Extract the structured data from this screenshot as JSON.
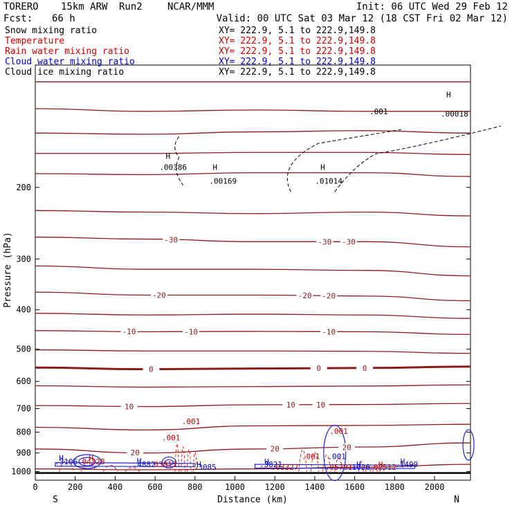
{
  "header": {
    "model": "TORERO",
    "resolution": "15km ARW",
    "run": "Run2",
    "org": "NCAR/MMM",
    "init": "Init: 06 UTC Wed 29 Feb 12",
    "fcst_label": "Fcst:",
    "fcst_value": "66 h",
    "valid": "Valid: 00 UTC Sat 03 Mar 12 (18 CST Fri 02 Mar 12)"
  },
  "legend": [
    {
      "name": "Snow mixing ratio",
      "color": "#000000",
      "xy": "XY= 222.9,  5.1 to 222.9,149.8"
    },
    {
      "name": "Temperature",
      "color": "#cc0000",
      "xy": "XY= 222.9,  5.1 to 222.9,149.8"
    },
    {
      "name": "Rain water mixing ratio",
      "color": "#cc0000",
      "xy": "XY= 222.9,  5.1 to 222.9,149.8"
    },
    {
      "name": "Cloud water mixing ratio",
      "color": "#0000cc",
      "xy": "XY= 222.9,  5.1 to 222.9,149.8"
    },
    {
      "name": "Cloud ice mixing ratio",
      "color": "#000000",
      "xy": "XY= 222.9,  5.1 to 222.9,149.8"
    }
  ],
  "chart_data": {
    "type": "line",
    "title": "",
    "xlabel": "Distance (km)",
    "ylabel": "Pressure (hPa)",
    "xlim": [
      0,
      2180
    ],
    "ylim": [
      1050,
      100
    ],
    "y_scale": "log",
    "x_ticks": [
      0,
      200,
      400,
      600,
      800,
      1000,
      1200,
      1400,
      1600,
      1800,
      2000
    ],
    "y_ticks": [
      200,
      300,
      400,
      500,
      600,
      700,
      800,
      900,
      1000
    ],
    "endpoint_labels": {
      "left": "S",
      "right": "N"
    },
    "temperature_isotherms": [
      {
        "t": -60,
        "p": [
          110,
          110,
          110,
          110,
          110
        ]
      },
      {
        "t": -55,
        "p": [
          128,
          130,
          129,
          130,
          130
        ]
      },
      {
        "t": -50,
        "p": [
          147,
          148,
          146,
          145,
          147
        ]
      },
      {
        "t": -45,
        "p": [
          165,
          165,
          164,
          164,
          166
        ]
      },
      {
        "t": -40,
        "p": [
          185,
          186,
          184,
          184,
          188
        ]
      },
      {
        "t": -35,
        "p": [
          228,
          230,
          232,
          230,
          235
        ]
      },
      {
        "t": -30,
        "p": [
          265,
          268,
          272,
          272,
          280
        ]
      },
      {
        "t": -25,
        "p": [
          312,
          318,
          318,
          320,
          330
        ]
      },
      {
        "t": -20,
        "p": [
          362,
          368,
          368,
          370,
          380
        ]
      },
      {
        "t": -15,
        "p": [
          408,
          412,
          410,
          412,
          420
        ]
      },
      {
        "t": -10,
        "p": [
          450,
          453,
          452,
          453,
          460
        ]
      },
      {
        "t": -5,
        "p": [
          502,
          505,
          505,
          506,
          512
        ]
      },
      {
        "t": 0,
        "p": [
          555,
          560,
          558,
          556,
          552
        ]
      },
      {
        "t": 5,
        "p": [
          615,
          620,
          618,
          616,
          612
        ]
      },
      {
        "t": 10,
        "p": [
          688,
          692,
          685,
          684,
          680
        ]
      },
      {
        "t": 15,
        "p": [
          778,
          790,
          772,
          770,
          765
        ]
      },
      {
        "t": 20,
        "p": [
          880,
          900,
          880,
          870,
          850
        ]
      },
      {
        "t": 25,
        "p": [
          985,
          990,
          985,
          975,
          960
        ]
      }
    ],
    "isotherm_x": [
      0,
      550,
      1100,
      1650,
      2180
    ],
    "isotherm_labels": [
      {
        "text": "-30",
        "x": 680,
        "t": -30
      },
      {
        "text": "-30",
        "x": 1450,
        "t": -30
      },
      {
        "text": "-30",
        "x": 1570,
        "t": -30
      },
      {
        "text": "-20",
        "x": 620,
        "t": -20
      },
      {
        "text": "-20",
        "x": 1350,
        "t": -20
      },
      {
        "text": "-20",
        "x": 1470,
        "t": -20
      },
      {
        "text": "-10",
        "x": 470,
        "t": -10
      },
      {
        "text": "-10",
        "x": 780,
        "t": -10
      },
      {
        "text": "-10",
        "x": 1470,
        "t": -10
      },
      {
        "text": "0",
        "x": 580,
        "t": 0
      },
      {
        "text": "0",
        "x": 1420,
        "t": 0
      },
      {
        "text": "0",
        "x": 1650,
        "t": 0
      },
      {
        "text": "10",
        "x": 470,
        "t": 10
      },
      {
        "text": "10",
        "x": 1280,
        "t": 10
      },
      {
        "text": "10",
        "x": 1430,
        "t": 10
      },
      {
        "text": "20",
        "x": 500,
        "t": 20
      },
      {
        "text": "20",
        "x": 1200,
        "t": 20
      },
      {
        "text": "20",
        "x": 1560,
        "t": 20
      }
    ],
    "maxima_labels": [
      {
        "text": "H",
        "x": 665,
        "p": 170,
        "color": "#000000"
      },
      {
        "text": ".00386",
        "x": 690,
        "p": 181,
        "color": "#000000"
      },
      {
        "text": "H",
        "x": 900,
        "p": 181,
        "color": "#000000"
      },
      {
        "text": ".00169",
        "x": 940,
        "p": 196,
        "color": "#000000"
      },
      {
        "text": "H",
        "x": 1440,
        "p": 181,
        "color": "#000000"
      },
      {
        "text": ".01014",
        "x": 1470,
        "p": 196,
        "color": "#000000"
      },
      {
        "text": "H",
        "x": 2070,
        "p": 120,
        "color": "#000000"
      },
      {
        "text": ".00018",
        "x": 2100,
        "p": 134,
        "color": "#000000"
      },
      {
        "text": ".001",
        "x": 1720,
        "p": 132,
        "color": "#000000"
      },
      {
        "text": ".001",
        "x": 780,
        "p": 764,
        "color": "#cc0000"
      },
      {
        "text": ".001",
        "x": 680,
        "p": 838,
        "color": "#cc0000"
      },
      {
        "text": ".001",
        "x": 1520,
        "p": 808,
        "color": "#cc0000"
      },
      {
        "text": ".001",
        "x": 1380,
        "p": 932,
        "color": "#cc0000"
      },
      {
        "text": ".001",
        "x": 1510,
        "p": 932,
        "color": "#0000cc"
      },
      {
        "text": "H",
        "x": 130,
        "p": 940,
        "color": "#0000cc"
      },
      {
        "text": ".3106",
        "x": 155,
        "p": 960,
        "color": "#0000cc"
      },
      {
        "text": "H",
        "x": 280,
        "p": 940,
        "color": "#cc0000"
      },
      {
        "text": ".04328",
        "x": 280,
        "p": 960,
        "color": "#cc0000"
      },
      {
        "text": "H",
        "x": 520,
        "p": 955,
        "color": "#0000cc"
      },
      {
        "text": ".4882",
        "x": 545,
        "p": 975,
        "color": "#0000cc"
      },
      {
        "text": ".03013",
        "x": 640,
        "p": 975,
        "color": "#cc0000"
      },
      {
        "text": "H",
        "x": 820,
        "p": 975,
        "color": "#0000cc"
      },
      {
        "text": ".3085",
        "x": 850,
        "p": 990,
        "color": "#0000cc"
      },
      {
        "text": "H",
        "x": 1160,
        "p": 960,
        "color": "#0000cc"
      },
      {
        "text": ".3821",
        "x": 1180,
        "p": 975,
        "color": "#0000cc"
      },
      {
        "text": ".03327",
        "x": 1250,
        "p": 990,
        "color": "#cc0000"
      },
      {
        "text": ".05791",
        "x": 1520,
        "p": 990,
        "color": "#cc0000"
      },
      {
        "text": "H",
        "x": 1620,
        "p": 975,
        "color": "#0000cc"
      },
      {
        "text": ".1026",
        "x": 1620,
        "p": 990,
        "color": "#0000cc"
      },
      {
        "text": "H",
        "x": 1730,
        "p": 975,
        "color": "#cc0000"
      },
      {
        "text": ".02512",
        "x": 1740,
        "p": 990,
        "color": "#cc0000"
      },
      {
        "text": "H",
        "x": 1840,
        "p": 960,
        "color": "#0000cc"
      },
      {
        "text": ".1499",
        "x": 1860,
        "p": 975,
        "color": "#0000cc"
      }
    ]
  }
}
